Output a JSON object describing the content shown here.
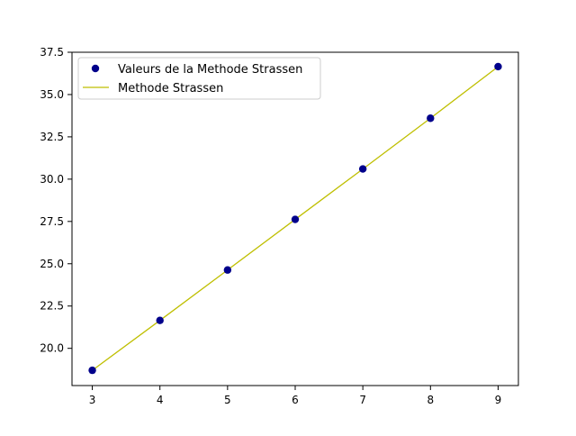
{
  "chart_data": {
    "type": "scatter",
    "x": [
      3,
      4,
      5,
      6,
      7,
      8,
      9
    ],
    "series": [
      {
        "name": "Valeurs de la Methode Strassen",
        "kind": "scatter",
        "color": "#00008b",
        "y": [
          18.7,
          21.65,
          24.63,
          27.62,
          30.6,
          33.6,
          36.65
        ]
      },
      {
        "name": "Methode Strassen",
        "kind": "line",
        "color": "#bfbf00",
        "y": [
          18.7,
          21.65,
          24.63,
          27.62,
          30.6,
          33.6,
          36.65
        ]
      }
    ],
    "xlim": [
      2.7,
      9.3
    ],
    "ylim": [
      17.8,
      37.5
    ],
    "xticks": [
      3,
      4,
      5,
      6,
      7,
      8,
      9
    ],
    "yticks": [
      20.0,
      22.5,
      25.0,
      27.5,
      30.0,
      32.5,
      35.0,
      37.5
    ],
    "xtick_labels": [
      "3",
      "4",
      "5",
      "6",
      "7",
      "8",
      "9"
    ],
    "ytick_labels": [
      "20.0",
      "22.5",
      "25.0",
      "27.5",
      "30.0",
      "32.5",
      "35.0",
      "37.5"
    ],
    "title": "",
    "xlabel": "",
    "ylabel": "",
    "grid": false,
    "legend_position": "upper-left"
  }
}
